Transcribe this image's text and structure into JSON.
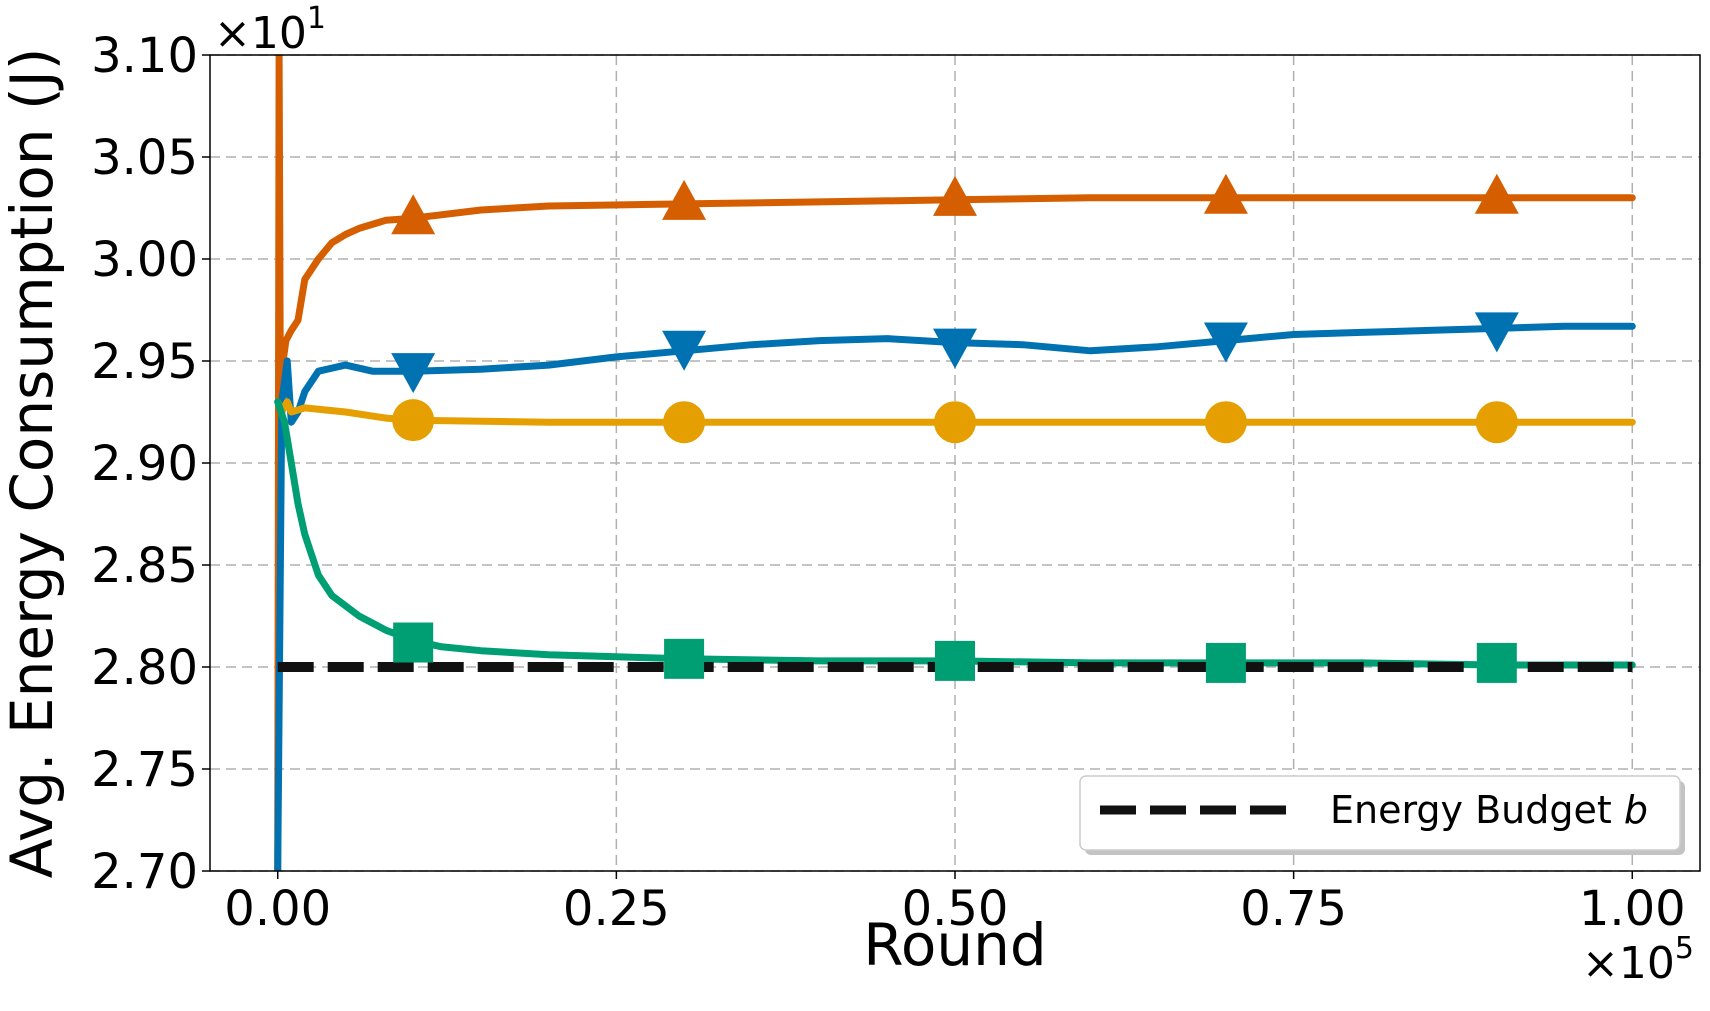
{
  "chart_data": {
    "type": "line",
    "title": "",
    "xlabel": "Round",
    "ylabel": "Avg. Energy Consumption (J)",
    "x_offset_text": "×10",
    "x_offset_exp": "5",
    "y_offset_text": "×10",
    "y_offset_exp": "1",
    "xlim": [
      -0.05,
      1.05
    ],
    "ylim": [
      2.7,
      3.1
    ],
    "x_ticks": [
      0.0,
      0.25,
      0.5,
      0.75,
      1.0
    ],
    "x_tick_labels": [
      "0.00",
      "0.25",
      "0.50",
      "0.75",
      "1.00"
    ],
    "y_ticks": [
      2.7,
      2.75,
      2.8,
      2.85,
      2.9,
      2.95,
      3.0,
      3.05,
      3.1
    ],
    "y_tick_labels": [
      "2.70",
      "2.75",
      "2.80",
      "2.85",
      "2.90",
      "2.95",
      "3.00",
      "3.05",
      "3.10"
    ],
    "grid": true,
    "legend_position": "bottom-right",
    "series": [
      {
        "color": "#d55e00",
        "marker": "triangle-up",
        "x": [
          0.0,
          0.001,
          0.002,
          0.004,
          0.006,
          0.01,
          0.015,
          0.02,
          0.03,
          0.04,
          0.05,
          0.06,
          0.08,
          0.1,
          0.15,
          0.2,
          0.3,
          0.4,
          0.5,
          0.6,
          0.7,
          0.8,
          0.9,
          1.0
        ],
        "y": [
          2.7,
          3.1,
          2.93,
          2.95,
          2.96,
          2.965,
          2.97,
          2.99,
          3.0,
          3.008,
          3.012,
          3.015,
          3.019,
          3.02,
          3.024,
          3.026,
          3.027,
          3.028,
          3.029,
          3.03,
          3.03,
          3.03,
          3.03,
          3.03
        ],
        "marker_x": [
          0.1,
          0.3,
          0.5,
          0.7,
          0.9
        ],
        "marker_y": [
          3.02,
          3.027,
          3.029,
          3.03,
          3.03
        ]
      },
      {
        "color": "#0072b2",
        "marker": "triangle-down",
        "x": [
          0.0,
          0.003,
          0.007,
          0.01,
          0.015,
          0.02,
          0.03,
          0.05,
          0.07,
          0.1,
          0.15,
          0.2,
          0.25,
          0.3,
          0.35,
          0.4,
          0.45,
          0.5,
          0.55,
          0.6,
          0.65,
          0.7,
          0.75,
          0.8,
          0.85,
          0.9,
          0.95,
          1.0
        ],
        "y": [
          2.7,
          2.93,
          2.95,
          2.92,
          2.925,
          2.935,
          2.945,
          2.948,
          2.945,
          2.945,
          2.946,
          2.948,
          2.952,
          2.955,
          2.958,
          2.96,
          2.961,
          2.959,
          2.958,
          2.955,
          2.957,
          2.96,
          2.963,
          2.964,
          2.965,
          2.966,
          2.967,
          2.967
        ],
        "marker_x": [
          0.1,
          0.3,
          0.5,
          0.7,
          0.9
        ],
        "marker_y": [
          2.946,
          2.957,
          2.958,
          2.961,
          2.966
        ]
      },
      {
        "color": "#e69f00",
        "marker": "circle",
        "x": [
          0.0,
          0.003,
          0.007,
          0.01,
          0.02,
          0.05,
          0.08,
          0.1,
          0.2,
          0.3,
          0.4,
          0.5,
          0.6,
          0.7,
          0.8,
          0.9,
          1.0
        ],
        "y": [
          2.93,
          2.925,
          2.93,
          2.925,
          2.927,
          2.925,
          2.922,
          2.921,
          2.92,
          2.92,
          2.92,
          2.92,
          2.92,
          2.92,
          2.92,
          2.92,
          2.92
        ],
        "marker_x": [
          0.1,
          0.3,
          0.5,
          0.7,
          0.9
        ],
        "marker_y": [
          2.921,
          2.92,
          2.92,
          2.92,
          2.92
        ]
      },
      {
        "color": "#009e73",
        "marker": "square",
        "x": [
          0.0,
          0.005,
          0.01,
          0.015,
          0.02,
          0.03,
          0.04,
          0.06,
          0.08,
          0.1,
          0.12,
          0.15,
          0.2,
          0.25,
          0.3,
          0.4,
          0.5,
          0.6,
          0.7,
          0.8,
          0.9,
          1.0
        ],
        "y": [
          2.93,
          2.92,
          2.9,
          2.88,
          2.865,
          2.845,
          2.835,
          2.825,
          2.818,
          2.813,
          2.81,
          2.808,
          2.806,
          2.805,
          2.804,
          2.803,
          2.803,
          2.802,
          2.802,
          2.802,
          2.801,
          2.801
        ],
        "marker_x": [
          0.1,
          0.3,
          0.5,
          0.7,
          0.9
        ],
        "marker_y": [
          2.812,
          2.804,
          2.803,
          2.802,
          2.802
        ]
      },
      {
        "name": "Energy Budget b",
        "color": "#111111",
        "style": "dashed",
        "x": [
          0.0,
          1.0
        ],
        "y": [
          2.8,
          2.8
        ]
      }
    ]
  },
  "legend": {
    "label_text": "Energy Budget ",
    "label_italic": "b"
  }
}
